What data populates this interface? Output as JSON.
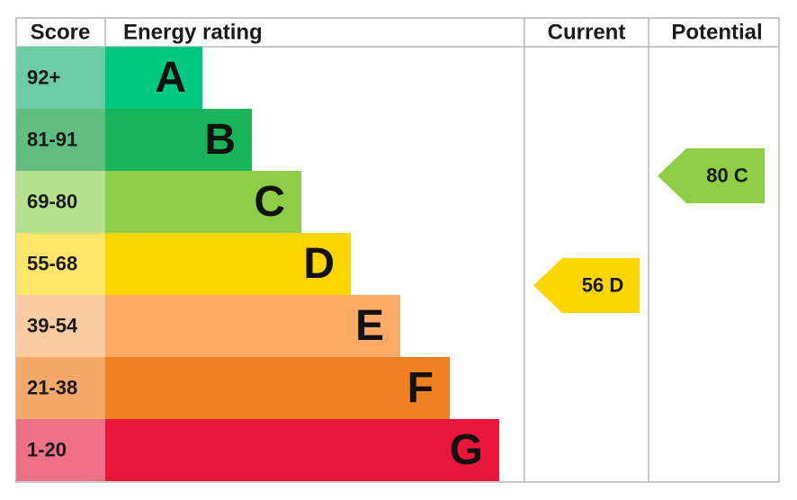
{
  "header": {
    "score": "Score",
    "energy_rating": "Energy rating",
    "current": "Current",
    "potential": "Potential"
  },
  "bands": [
    {
      "score": "92+",
      "letter": "A",
      "color": "#00c781",
      "score_color": "#6ccda4"
    },
    {
      "score": "81-91",
      "letter": "B",
      "color": "#19b459",
      "score_color": "#62bd80"
    },
    {
      "score": "69-80",
      "letter": "C",
      "color": "#8dce46",
      "score_color": "#b6e08e"
    },
    {
      "score": "55-68",
      "letter": "D",
      "color": "#ffd500",
      "score_color": "#ffe56a"
    },
    {
      "score": "39-54",
      "letter": "E",
      "color": "#fcaa65",
      "score_color": "#fccba0"
    },
    {
      "score": "21-38",
      "letter": "F",
      "color": "#ef8023",
      "score_color": "#f4a96a"
    },
    {
      "score": "1-20",
      "letter": "G",
      "color": "#e9153b",
      "score_color": "#f07088"
    }
  ],
  "current": {
    "label": "56 D",
    "color": "#ffd500"
  },
  "potential": {
    "label": "80 C",
    "color": "#8dce46"
  }
}
